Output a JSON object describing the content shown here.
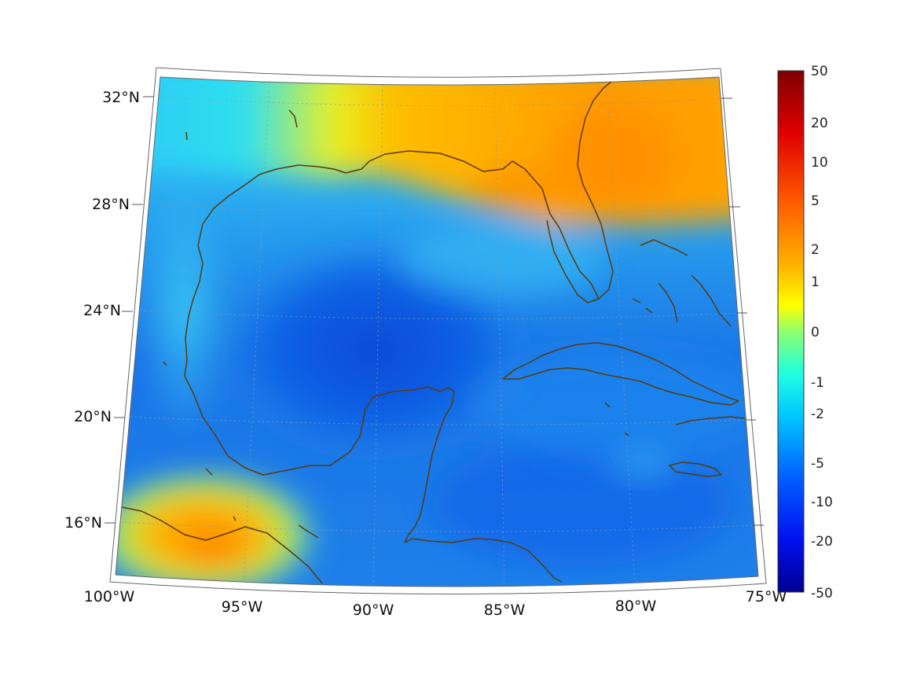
{
  "map": {
    "longitude_labels": [
      "100°W",
      "95°W",
      "90°W",
      "85°W",
      "80°W",
      "75°W"
    ],
    "latitude_labels": [
      "32°N",
      "28°N",
      "24°N",
      "20°N",
      "16°N"
    ],
    "graticule": {
      "dashed": true
    }
  },
  "colorbar": {
    "tick_labels": [
      "50",
      "20",
      "10",
      "5",
      "2",
      "1",
      "0",
      "-1",
      "-2",
      "-5",
      "-10",
      "-20",
      "-50"
    ],
    "colormap": "jet",
    "colors": [
      "#00008f",
      "#0000ff",
      "#0080ff",
      "#00ffff",
      "#80ff80",
      "#ffff00",
      "#ff8000",
      "#ff0000",
      "#800000"
    ]
  },
  "colors": {
    "coastline": "#5a3a0c",
    "gulf_interior": "#0a5ce0",
    "caribbean": "#1a6ff0",
    "florida_warm": "#ff9a00",
    "texas_coast": "#38d0f0"
  }
}
